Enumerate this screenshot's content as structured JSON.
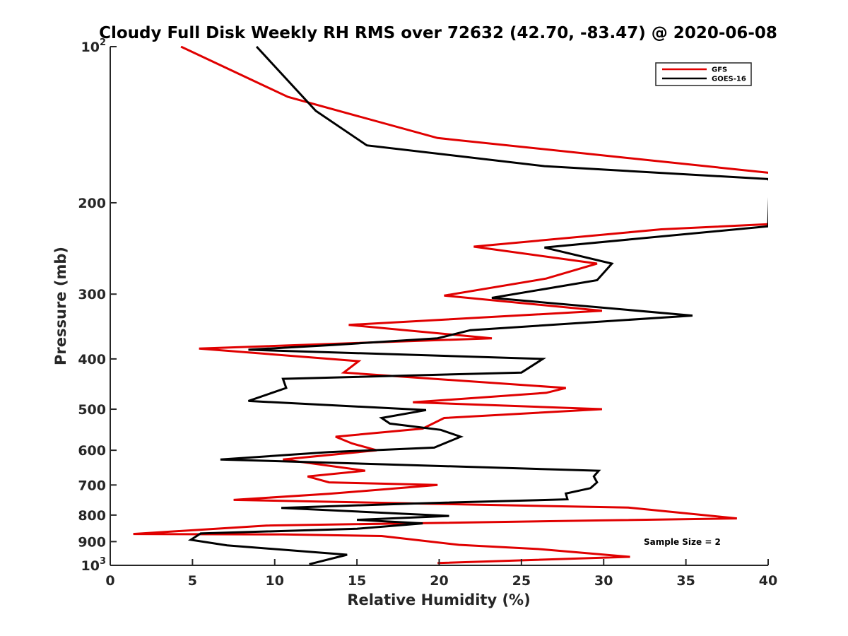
{
  "chart_data": {
    "type": "line",
    "title": "Cloudy Full Disk Weekly RH RMS over 72632 (42.70, -83.47) @ 2020-06-08",
    "xlabel": "Relative Humidity (%)",
    "ylabel": "Pressure (mb)",
    "xlim": [
      0,
      40
    ],
    "ylim": [
      100,
      1000
    ],
    "y_scale": "log",
    "y_reversed": true,
    "grid": false,
    "legend_position": "top-right",
    "x_ticks": [
      "0",
      "5",
      "10",
      "15",
      "20",
      "25",
      "30",
      "35",
      "40"
    ],
    "y_ticks": [
      {
        "value": 100,
        "base": "10",
        "exp": "2"
      },
      {
        "value": 200,
        "label": "200"
      },
      {
        "value": 300,
        "label": "300"
      },
      {
        "value": 400,
        "label": "400"
      },
      {
        "value": 500,
        "label": "500"
      },
      {
        "value": 600,
        "label": "600"
      },
      {
        "value": 700,
        "label": "700"
      },
      {
        "value": 800,
        "label": "800"
      },
      {
        "value": 900,
        "label": "900"
      },
      {
        "value": 1000,
        "base": "10",
        "exp": "3"
      }
    ],
    "annotation": "Sample Size = 2",
    "series": [
      {
        "name": "GFS",
        "color": "#e00000",
        "points": [
          [
            4.3,
            100
          ],
          [
            10.8,
            125
          ],
          [
            19.9,
            150
          ],
          [
            40.0,
            175
          ],
          [
            40.5,
            178
          ],
          [
            40.0,
            220
          ],
          [
            33.5,
            225
          ],
          [
            22.1,
            243
          ],
          [
            29.6,
            262
          ],
          [
            26.5,
            280
          ],
          [
            20.3,
            302
          ],
          [
            29.9,
            323
          ],
          [
            14.5,
            344
          ],
          [
            23.2,
            365
          ],
          [
            5.4,
            382
          ],
          [
            15.1,
            404
          ],
          [
            14.2,
            425
          ],
          [
            27.7,
            455
          ],
          [
            26.5,
            465
          ],
          [
            18.4,
            485
          ],
          [
            29.9,
            500
          ],
          [
            20.3,
            520
          ],
          [
            19.0,
            545
          ],
          [
            13.7,
            565
          ],
          [
            14.7,
            582
          ],
          [
            16.2,
            600
          ],
          [
            10.5,
            625
          ],
          [
            15.5,
            657
          ],
          [
            12.0,
            674
          ],
          [
            13.3,
            692
          ],
          [
            19.9,
            700
          ],
          [
            13.3,
            728
          ],
          [
            7.5,
            748
          ],
          [
            31.5,
            774
          ],
          [
            38.1,
            812
          ],
          [
            29.9,
            819
          ],
          [
            9.5,
            838
          ],
          [
            1.4,
            870
          ],
          [
            10.5,
            872
          ],
          [
            16.5,
            878
          ],
          [
            21.2,
            913
          ],
          [
            26.2,
            931
          ],
          [
            31.6,
            963
          ],
          [
            19.9,
            990
          ]
        ]
      },
      {
        "name": "GOES-16",
        "color": "#000000",
        "points": [
          [
            8.9,
            100
          ],
          [
            12.5,
            133
          ],
          [
            15.6,
            155
          ],
          [
            26.4,
            170
          ],
          [
            40.0,
            180
          ],
          [
            40.1,
            182
          ],
          [
            40.0,
            222
          ],
          [
            26.4,
            244
          ],
          [
            30.5,
            262
          ],
          [
            29.6,
            282
          ],
          [
            23.2,
            305
          ],
          [
            35.4,
            330
          ],
          [
            21.9,
            352
          ],
          [
            19.9,
            365
          ],
          [
            13.5,
            376
          ],
          [
            8.4,
            384
          ],
          [
            26.3,
            400
          ],
          [
            25.0,
            425
          ],
          [
            10.5,
            437
          ],
          [
            10.7,
            455
          ],
          [
            8.4,
            482
          ],
          [
            19.2,
            502
          ],
          [
            16.5,
            520
          ],
          [
            17.0,
            533
          ],
          [
            20.1,
            548
          ],
          [
            21.3,
            565
          ],
          [
            19.7,
            593
          ],
          [
            13.3,
            605
          ],
          [
            6.7,
            625
          ],
          [
            29.7,
            657
          ],
          [
            29.4,
            674
          ],
          [
            29.6,
            692
          ],
          [
            29.2,
            710
          ],
          [
            27.7,
            727
          ],
          [
            27.8,
            746
          ],
          [
            18.5,
            760
          ],
          [
            10.4,
            775
          ],
          [
            20.6,
            803
          ],
          [
            15.0,
            817
          ],
          [
            19.0,
            830
          ],
          [
            15.0,
            850
          ],
          [
            5.5,
            868
          ],
          [
            4.9,
            893
          ],
          [
            7.1,
            915
          ],
          [
            14.4,
            954
          ],
          [
            12.1,
            995
          ]
        ]
      }
    ]
  }
}
